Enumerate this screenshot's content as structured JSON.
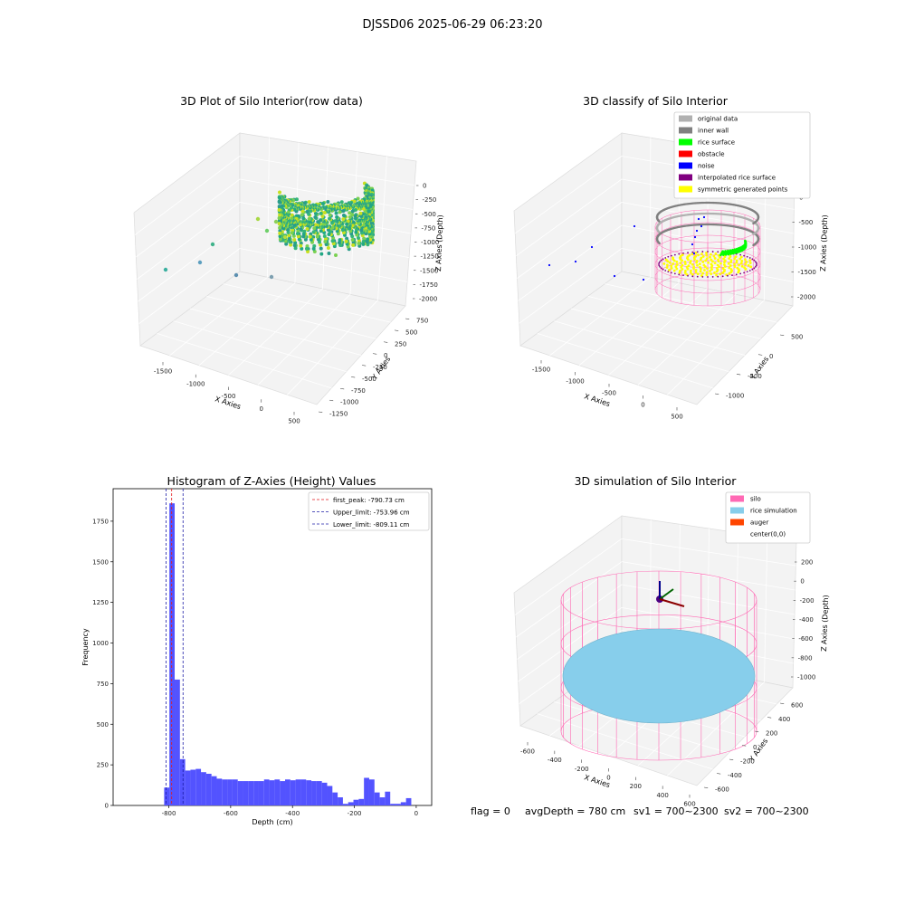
{
  "suptitle": "DJSSD06 2025-06-29 06:23:20",
  "colors": {
    "hist_bar": "#5050ff",
    "first_peak_line": "#e41a1c",
    "limit_line": "#1f1fa8",
    "silo": "#ff69b4",
    "rice_simulation": "#87ceeb",
    "auger": "#ff4500",
    "original_data": "#b0b0b0",
    "inner_wall": "#808080",
    "rice_surface": "#00ff00",
    "obstacle": "#ff0000",
    "noise": "#0000ff",
    "interpolated_rice_surface": "#800080",
    "symmetric_generated_points": "#ffff00"
  },
  "panels": {
    "raw": {
      "title": "3D Plot of Silo Interior(row data)",
      "xlabel": "X Axies",
      "ylabel": "Y Axies",
      "zlabel": "Z Axies (Depth)",
      "xticks": [
        "-1500",
        "-1000",
        "-500",
        "0",
        "500"
      ],
      "yticks": [
        "750",
        "500",
        "250",
        "0",
        "-250",
        "-500",
        "-750",
        "-1000",
        "-1250"
      ],
      "zticks": [
        "0",
        "-250",
        "-500",
        "-750",
        "-1000",
        "-1250",
        "-1500",
        "-1750",
        "-2000"
      ]
    },
    "classify": {
      "title": "3D classify of Silo Interior",
      "xlabel": "X Axies",
      "ylabel": "Y Axies",
      "zlabel": "Z Axies (Depth)",
      "xticks": [
        "-1500",
        "-1000",
        "-500",
        "0",
        "500"
      ],
      "yticks": [
        "500",
        "0",
        "-500",
        "-1000"
      ],
      "zticks": [
        "0",
        "-500",
        "-1000",
        "-1500",
        "-2000"
      ],
      "legend": [
        {
          "label": "original data",
          "color": "#b0b0b0"
        },
        {
          "label": "inner wall",
          "color": "#808080"
        },
        {
          "label": "rice surface",
          "color": "#00ff00"
        },
        {
          "label": "obstacle",
          "color": "#ff0000"
        },
        {
          "label": "noise",
          "color": "#0000ff"
        },
        {
          "label": "interpolated rice surface",
          "color": "#800080"
        },
        {
          "label": "symmetric generated points",
          "color": "#ffff00"
        }
      ]
    },
    "simulation": {
      "title": "3D simulation of Silo Interior",
      "xlabel": "X Axies",
      "ylabel": "Y Axies",
      "zlabel": "Z Axies (Depth)",
      "xticks": [
        "-600",
        "-400",
        "-200",
        "0",
        "200",
        "400",
        "600"
      ],
      "yticks": [
        "600",
        "400",
        "200",
        "0",
        "-200",
        "-400",
        "-600"
      ],
      "zticks": [
        "200",
        "0",
        "-200",
        "-400",
        "-600",
        "-800",
        "-1000"
      ],
      "legend": [
        {
          "label": "silo",
          "color": "#ff69b4"
        },
        {
          "label": "rice simulation",
          "color": "#87ceeb"
        },
        {
          "label": "auger",
          "color": "#ff4500"
        },
        {
          "label": "center(0,0)",
          "color": ""
        }
      ]
    }
  },
  "status_line": {
    "flag": "flag = 0",
    "avg_depth": "avgDepth = 780 cm",
    "sv1": "sv1 = 700~2300",
    "sv2": "sv2 = 700~2300"
  },
  "chart_data": {
    "type": "bar",
    "title": "Histogram of Z-Axies (Height) Values",
    "xlabel": "Depth (cm)",
    "ylabel": "Frequency",
    "xlim": [
      -980,
      50
    ],
    "ylim": [
      0,
      1950
    ],
    "xticks": [
      -800,
      -600,
      -400,
      -200,
      0
    ],
    "yticks": [
      0,
      250,
      500,
      750,
      1000,
      1250,
      1500,
      1750
    ],
    "bin_width": 17,
    "bin_left_edges": [
      -815,
      -798,
      -781,
      -764,
      -747,
      -730,
      -713,
      -696,
      -679,
      -662,
      -645,
      -628,
      -611,
      -594,
      -577,
      -560,
      -543,
      -526,
      -509,
      -492,
      -475,
      -458,
      -441,
      -424,
      -407,
      -390,
      -373,
      -356,
      -339,
      -322,
      -305,
      -288,
      -271,
      -254,
      -237,
      -220,
      -203,
      -186,
      -169,
      -152,
      -135,
      -118,
      -101,
      -84,
      -67,
      -50,
      -33,
      -16
    ],
    "counts": [
      110,
      1860,
      775,
      285,
      215,
      220,
      225,
      205,
      195,
      180,
      165,
      160,
      160,
      160,
      150,
      150,
      150,
      150,
      150,
      160,
      155,
      160,
      150,
      160,
      155,
      160,
      160,
      155,
      150,
      150,
      140,
      120,
      80,
      50,
      10,
      20,
      35,
      40,
      170,
      160,
      80,
      50,
      85,
      10,
      10,
      20,
      45,
      0
    ],
    "lines": [
      {
        "label": "first_peak: -790.73 cm",
        "x": -790.73,
        "style": "dashed",
        "color": "#e41a1c"
      },
      {
        "label": "Upper_limit: -753.96 cm",
        "x": -753.96,
        "style": "dashed",
        "color": "#1f1fa8"
      },
      {
        "label": "Lower_limit: -809.11 cm",
        "x": -809.11,
        "style": "dashed",
        "color": "#1f1fa8"
      }
    ]
  }
}
